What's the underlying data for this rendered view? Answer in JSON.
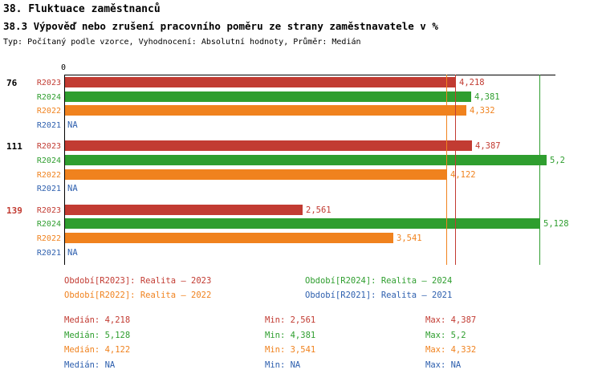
{
  "title": "38. Fluktuace zaměstnanců",
  "subtitle": "38.3 Výpověď nebo zrušení pracovního poměru ze strany zaměstnavatele v %",
  "meta": "Typ: Počítaný podle vzorce, Vyhodnocení: Absolutní hodnoty, Průměr: Medián",
  "series_colors": {
    "R2023": "#c23b32",
    "R2024": "#2f9e2f",
    "R2022": "#f0821e",
    "R2021": "#2d5fae"
  },
  "chart_data": {
    "type": "bar",
    "orientation": "horizontal",
    "x_origin_label": "0",
    "xlim": [
      0,
      5.3
    ],
    "grid": false,
    "legend_position": "bottom",
    "groups": [
      {
        "label": "76",
        "label_color": "#000000",
        "bars": [
          {
            "series": "R2023",
            "value": 4.218,
            "display": "4,218"
          },
          {
            "series": "R2024",
            "value": 4.381,
            "display": "4,381"
          },
          {
            "series": "R2022",
            "value": 4.332,
            "display": "4,332"
          },
          {
            "series": "R2021",
            "value": null,
            "display": "NA"
          }
        ]
      },
      {
        "label": "111",
        "label_color": "#000000",
        "bars": [
          {
            "series": "R2023",
            "value": 4.387,
            "display": "4,387"
          },
          {
            "series": "R2024",
            "value": 5.2,
            "display": "5,2"
          },
          {
            "series": "R2022",
            "value": 4.122,
            "display": "4,122"
          },
          {
            "series": "R2021",
            "value": null,
            "display": "NA"
          }
        ]
      },
      {
        "label": "139",
        "label_color": "#c23b32",
        "bars": [
          {
            "series": "R2023",
            "value": 2.561,
            "display": "2,561"
          },
          {
            "series": "R2024",
            "value": 5.128,
            "display": "5,128"
          },
          {
            "series": "R2022",
            "value": 3.541,
            "display": "3,541"
          },
          {
            "series": "R2021",
            "value": null,
            "display": "NA"
          }
        ]
      }
    ],
    "median_lines": [
      {
        "series": "R2022",
        "value": 4.122
      },
      {
        "series": "R2023",
        "value": 4.218
      },
      {
        "series": "R2024",
        "value": 5.128
      }
    ]
  },
  "legend": [
    {
      "series": "R2023",
      "label": "Období[R2023]: Realita – 2023"
    },
    {
      "series": "R2024",
      "label": "Období[R2024]: Realita – 2024"
    },
    {
      "series": "R2022",
      "label": "Období[R2022]: Realita – 2022"
    },
    {
      "series": "R2021",
      "label": "Období[R2021]: Realita – 2021"
    }
  ],
  "stats": [
    {
      "series": "R2023",
      "median": "Medián: 4,218",
      "min": "Min: 2,561",
      "max": "Max: 4,387"
    },
    {
      "series": "R2024",
      "median": "Medián: 5,128",
      "min": "Min: 4,381",
      "max": "Max: 5,2"
    },
    {
      "series": "R2022",
      "median": "Medián: 4,122",
      "min": "Min: 3,541",
      "max": "Max: 4,332"
    },
    {
      "series": "R2021",
      "median": "Medián: NA",
      "min": "Min: NA",
      "max": "Max: NA"
    }
  ]
}
